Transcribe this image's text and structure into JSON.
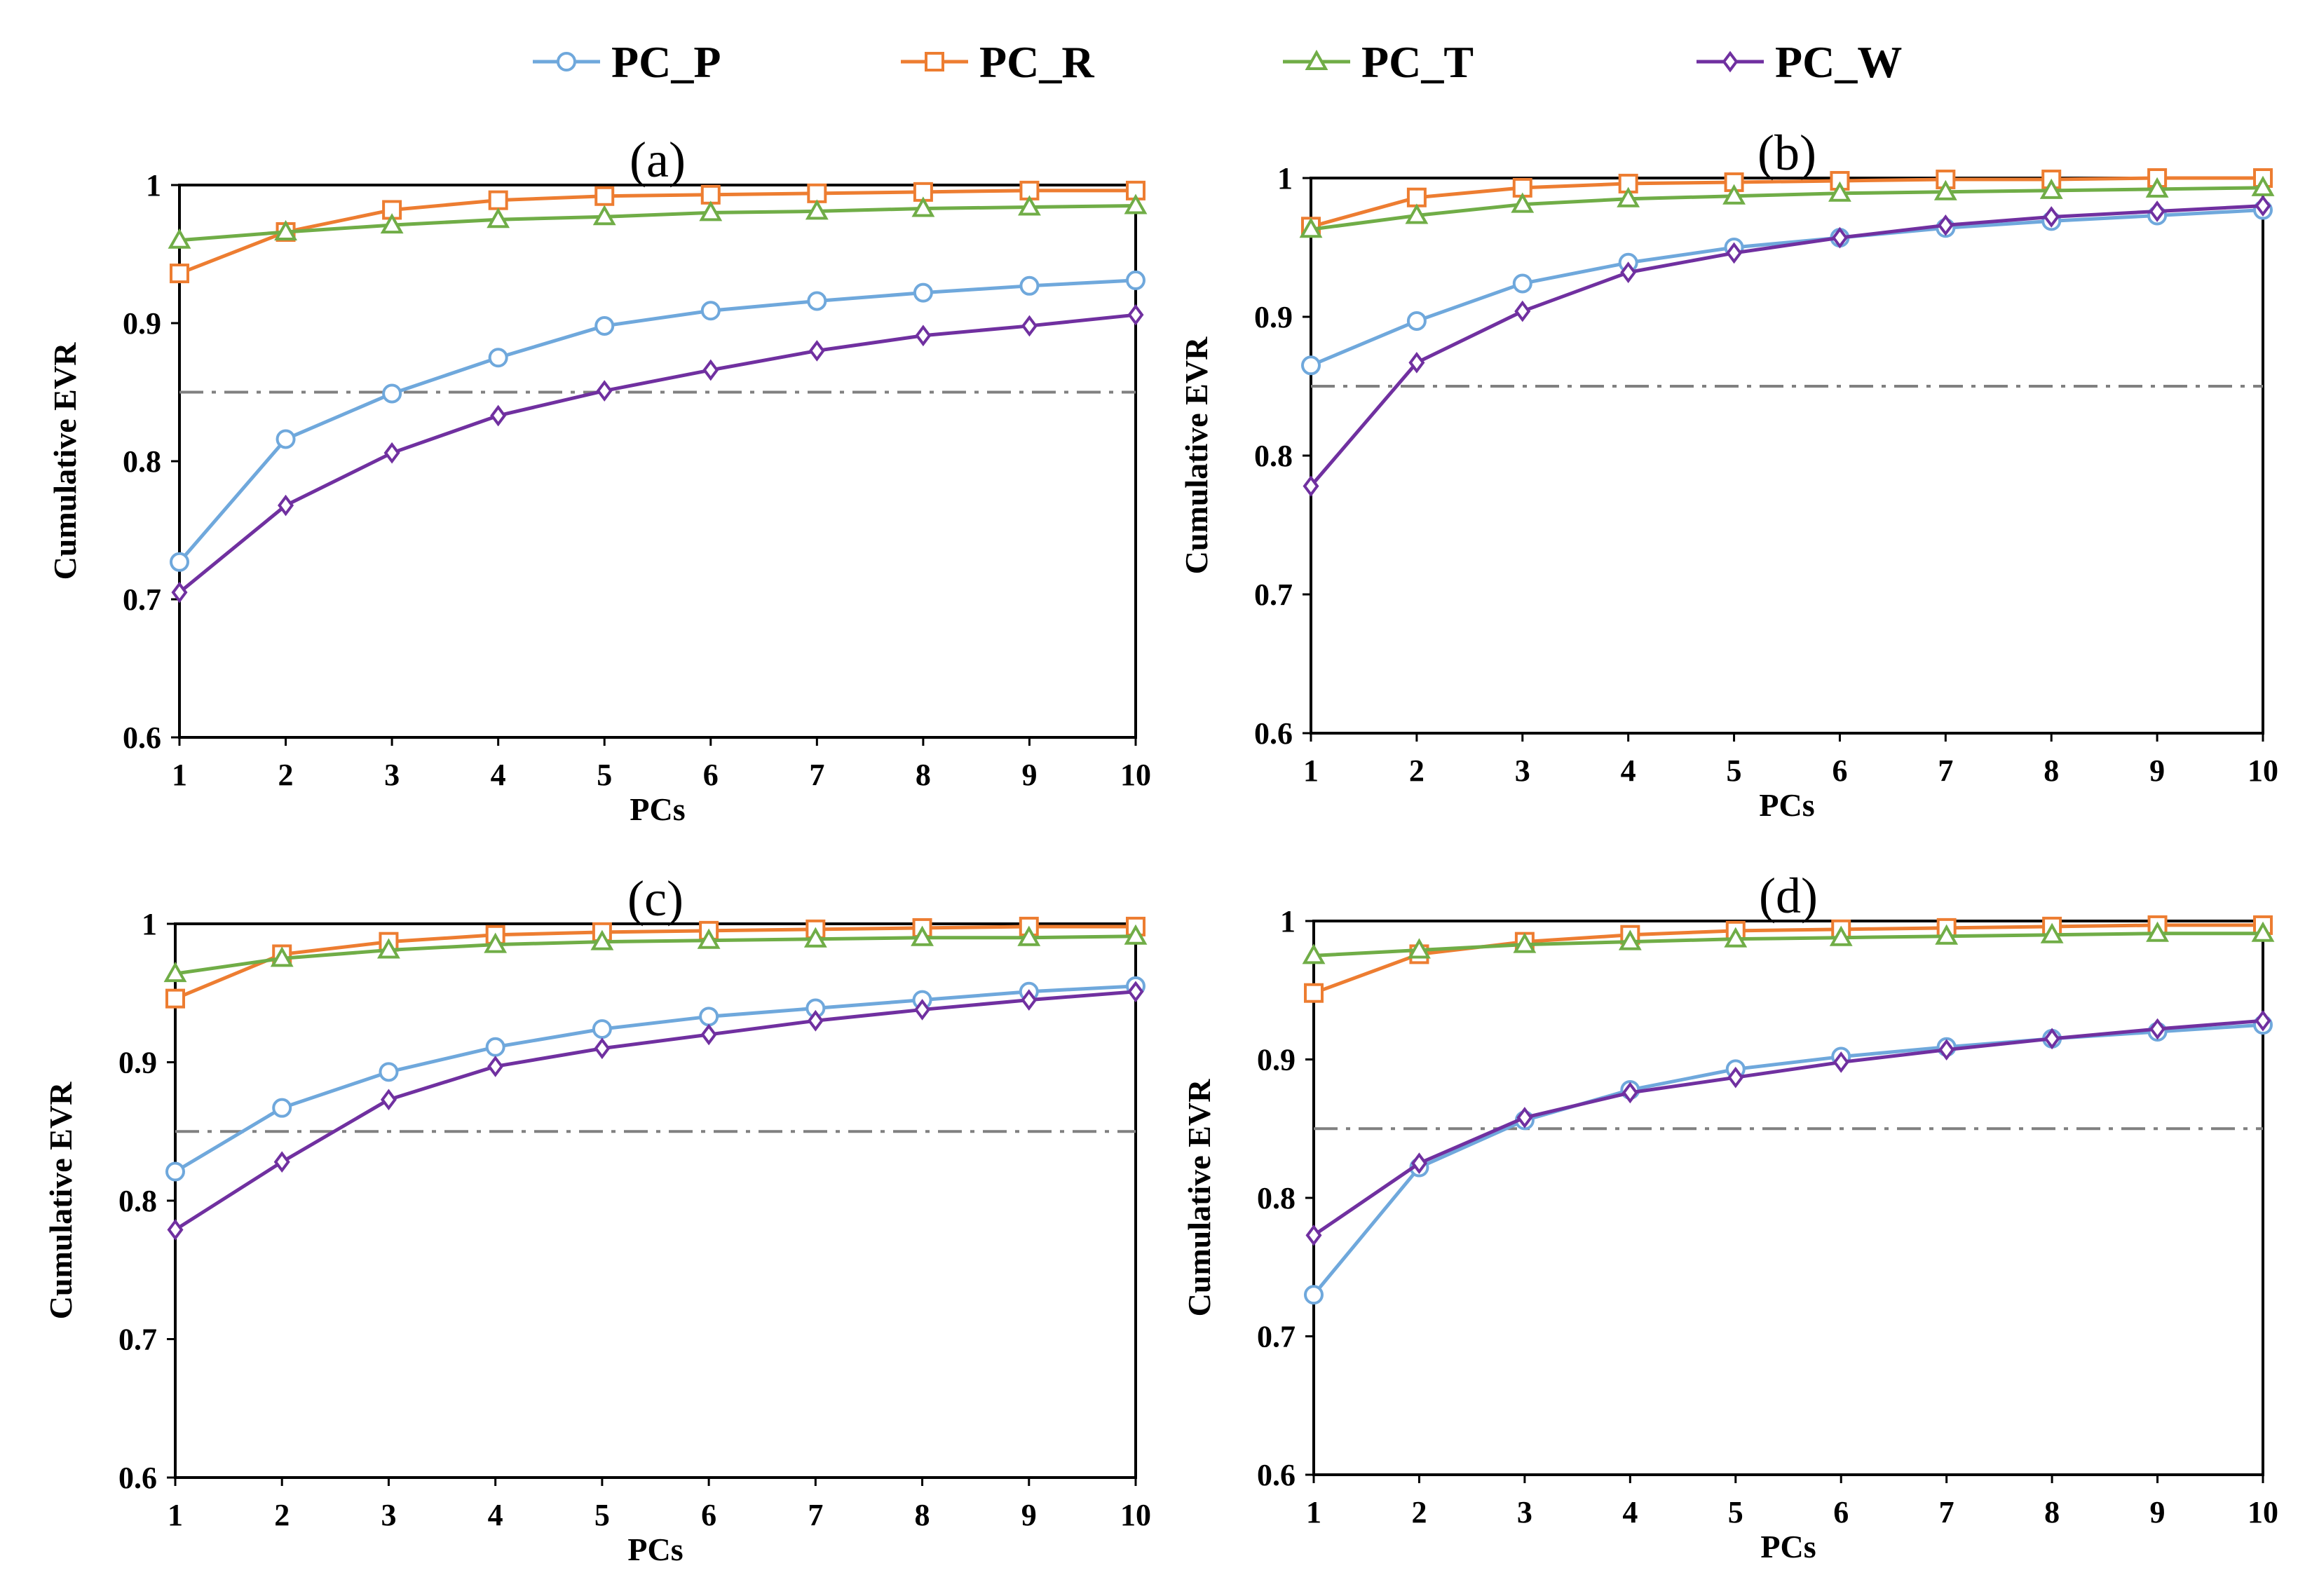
{
  "chart_data": {
    "legend": {
      "placement": "top-center",
      "entries": [
        {
          "name": "PC_P",
          "color": "#6fa8dc",
          "marker": "circle"
        },
        {
          "name": "PC_R",
          "color": "#ed7d31",
          "marker": "square"
        },
        {
          "name": "PC_T",
          "color": "#70ad47",
          "marker": "triangle"
        },
        {
          "name": "PC_W",
          "color": "#7030a0",
          "marker": "diamond"
        }
      ]
    },
    "panels": [
      {
        "type": "line",
        "label": "(a)",
        "xlabel": "PCs",
        "ylabel": "Cumulative EVR",
        "x": [
          1,
          2,
          3,
          4,
          5,
          6,
          7,
          8,
          9,
          10
        ],
        "x_ticks": [
          "1",
          "2",
          "3",
          "4",
          "5",
          "6",
          "7",
          "8",
          "9",
          "10"
        ],
        "y_ticks": [
          "0.6",
          "0.7",
          "0.8",
          "0.9",
          "1"
        ],
        "ylim": [
          0.6,
          1.0
        ],
        "threshold": 0.85,
        "series": [
          {
            "name": "PC_P",
            "values": [
              0.727,
              0.816,
              0.849,
              0.875,
              0.898,
              0.909,
              0.916,
              0.922,
              0.927,
              0.931
            ]
          },
          {
            "name": "PC_R",
            "values": [
              0.936,
              0.966,
              0.982,
              0.989,
              0.992,
              0.993,
              0.994,
              0.995,
              0.996,
              0.996
            ]
          },
          {
            "name": "PC_T",
            "values": [
              0.96,
              0.966,
              0.971,
              0.975,
              0.977,
              0.98,
              0.981,
              0.983,
              0.984,
              0.985
            ]
          },
          {
            "name": "PC_W",
            "values": [
              0.705,
              0.768,
              0.806,
              0.833,
              0.851,
              0.866,
              0.88,
              0.891,
              0.898,
              0.906
            ]
          }
        ]
      },
      {
        "type": "line",
        "label": "(b)",
        "xlabel": "PCs",
        "ylabel": "Cumulative EVR",
        "x": [
          1,
          2,
          3,
          4,
          5,
          6,
          7,
          8,
          9,
          10
        ],
        "x_ticks": [
          "1",
          "2",
          "3",
          "4",
          "5",
          "6",
          "7",
          "8",
          "9",
          "10"
        ],
        "y_ticks": [
          "0.6",
          "0.7",
          "0.8",
          "0.9",
          "1"
        ],
        "ylim": [
          0.6,
          1.0
        ],
        "threshold": 0.85,
        "series": [
          {
            "name": "PC_P",
            "values": [
              0.865,
              0.897,
              0.924,
              0.939,
              0.95,
              0.957,
              0.964,
              0.969,
              0.973,
              0.977
            ]
          },
          {
            "name": "PC_R",
            "values": [
              0.965,
              0.986,
              0.993,
              0.996,
              0.997,
              0.998,
              0.999,
              0.999,
              1.0,
              1.0
            ]
          },
          {
            "name": "PC_T",
            "values": [
              0.963,
              0.973,
              0.981,
              0.985,
              0.987,
              0.989,
              0.99,
              0.991,
              0.992,
              0.993
            ]
          },
          {
            "name": "PC_W",
            "values": [
              0.778,
              0.867,
              0.904,
              0.932,
              0.946,
              0.957,
              0.966,
              0.972,
              0.976,
              0.98
            ]
          }
        ]
      },
      {
        "type": "line",
        "label": "(c)",
        "xlabel": "PCs",
        "ylabel": "Cumulative EVR",
        "x": [
          1,
          2,
          3,
          4,
          5,
          6,
          7,
          8,
          9,
          10
        ],
        "x_ticks": [
          "1",
          "2",
          "3",
          "4",
          "5",
          "6",
          "7",
          "8",
          "9",
          "10"
        ],
        "y_ticks": [
          "0.6",
          "0.7",
          "0.8",
          "0.9",
          "1"
        ],
        "ylim": [
          0.6,
          1.0
        ],
        "threshold": 0.85,
        "series": [
          {
            "name": "PC_P",
            "values": [
              0.821,
              0.867,
              0.893,
              0.911,
              0.924,
              0.933,
              0.939,
              0.945,
              0.951,
              0.955
            ]
          },
          {
            "name": "PC_R",
            "values": [
              0.946,
              0.978,
              0.987,
              0.992,
              0.994,
              0.995,
              0.996,
              0.997,
              0.998,
              0.998
            ]
          },
          {
            "name": "PC_T",
            "values": [
              0.964,
              0.975,
              0.981,
              0.985,
              0.987,
              0.988,
              0.989,
              0.99,
              0.99,
              0.991
            ]
          },
          {
            "name": "PC_W",
            "values": [
              0.779,
              0.828,
              0.873,
              0.897,
              0.91,
              0.92,
              0.93,
              0.938,
              0.945,
              0.951
            ]
          }
        ]
      },
      {
        "type": "line",
        "label": "(d)",
        "xlabel": "PCs",
        "ylabel": "Cumulative EVR",
        "x": [
          1,
          2,
          3,
          4,
          5,
          6,
          7,
          8,
          9,
          10
        ],
        "x_ticks": [
          "1",
          "2",
          "3",
          "4",
          "5",
          "6",
          "7",
          "8",
          "9",
          "10"
        ],
        "y_ticks": [
          "0.6",
          "0.7",
          "0.8",
          "0.9",
          "1"
        ],
        "ylim": [
          0.6,
          1.0
        ],
        "threshold": 0.85,
        "series": [
          {
            "name": "PC_P",
            "values": [
              0.73,
              0.822,
              0.856,
              0.878,
              0.893,
              0.902,
              0.909,
              0.915,
              0.92,
              0.925
            ]
          },
          {
            "name": "PC_R",
            "values": [
              0.948,
              0.976,
              0.985,
              0.99,
              0.993,
              0.994,
              0.995,
              0.996,
              0.997,
              0.997
            ]
          },
          {
            "name": "PC_T",
            "values": [
              0.975,
              0.979,
              0.983,
              0.985,
              0.987,
              0.988,
              0.989,
              0.99,
              0.991,
              0.991
            ]
          },
          {
            "name": "PC_W",
            "values": [
              0.773,
              0.825,
              0.858,
              0.876,
              0.887,
              0.898,
              0.907,
              0.915,
              0.922,
              0.928
            ]
          }
        ]
      }
    ]
  }
}
